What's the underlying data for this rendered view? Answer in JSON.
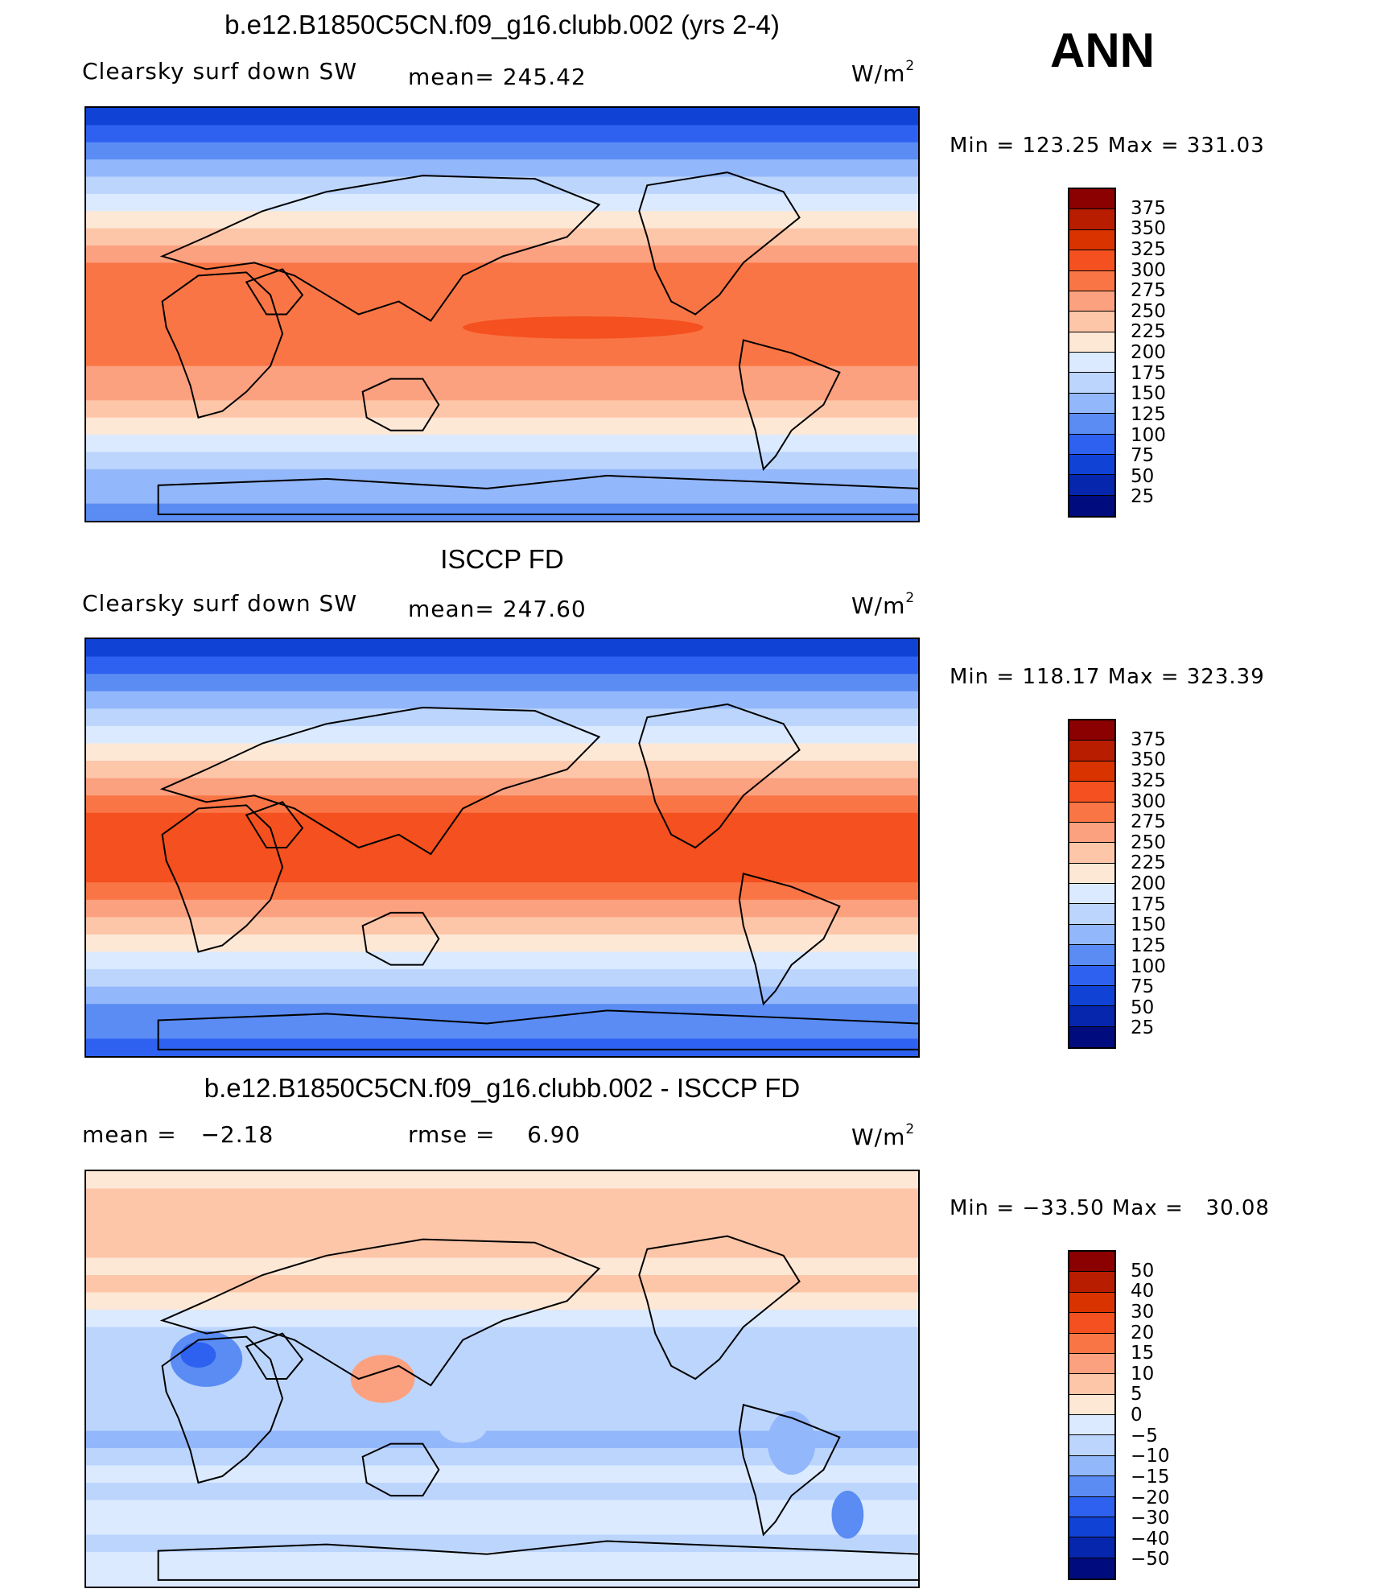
{
  "season": "ANN",
  "panels": [
    {
      "title": "b.e12.B1850C5CN.f09_g16.clubb.002 (yrs 2-4)",
      "left_label": "Clearsky surf down SW",
      "center_label": "mean= 245.42",
      "units": "W/m",
      "units_sup": "2",
      "minmax": "Min = 123.25 Max = 331.03",
      "kind": "abs"
    },
    {
      "title": "ISCCP FD",
      "left_label": "Clearsky surf down SW",
      "center_label": "mean= 247.60",
      "units": "W/m",
      "units_sup": "2",
      "minmax": "Min = 118.17 Max = 323.39",
      "kind": "abs2"
    },
    {
      "title": "b.e12.B1850C5CN.f09_g16.clubb.002 - ISCCP FD",
      "left_label": "mean =   −2.18",
      "center_label": "rmse =    6.90",
      "units": "W/m",
      "units_sup": "2",
      "minmax": "Min = −33.50 Max =   30.08",
      "kind": "diff"
    }
  ],
  "colorbars": {
    "abs": {
      "labels": [
        "375",
        "350",
        "325",
        "300",
        "275",
        "250",
        "225",
        "200",
        "175",
        "150",
        "125",
        "100",
        "75",
        "50",
        "25"
      ],
      "colors": [
        "#8b0000",
        "#b81d00",
        "#d93300",
        "#f5501f",
        "#fa7545",
        "#fca17f",
        "#fdc6a8",
        "#fde8d6",
        "#dbeaff",
        "#bcd5fd",
        "#93b7fb",
        "#5a8cf4",
        "#2e61f0",
        "#1042d6",
        "#0626ae",
        "#000c7d"
      ]
    },
    "diff": {
      "labels": [
        "50",
        "40",
        "30",
        "20",
        "15",
        "10",
        "5",
        "0",
        "−5",
        "−10",
        "−15",
        "−20",
        "−30",
        "−40",
        "−50"
      ],
      "colors": [
        "#8b0000",
        "#b81d00",
        "#d93300",
        "#f5501f",
        "#fa7545",
        "#fca17f",
        "#fdc6a8",
        "#fde8d6",
        "#dbeaff",
        "#bcd5fd",
        "#93b7fb",
        "#5a8cf4",
        "#2e61f0",
        "#1042d6",
        "#0626ae",
        "#000c7d"
      ]
    }
  }
}
